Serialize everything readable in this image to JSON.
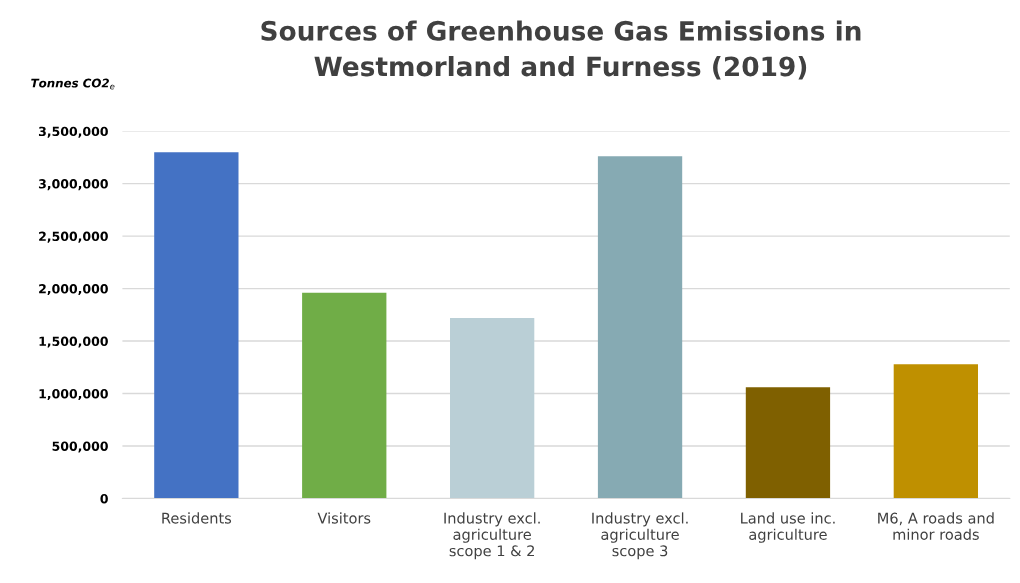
{
  "chart_data": {
    "type": "bar",
    "title": "Sources of Greenhouse Gas Emissions in\nWestmorland and Furness (2019)",
    "ylabel": "Tonnes CO2$_{e}$",
    "categories": [
      "Residents",
      "Visitors",
      "Industry excl.\nagriculture\nscope 1 & 2",
      "Industry excl.\nagriculture\nscope 3",
      "Land use inc.\nagriculture",
      "M6, A roads and\nminor roads"
    ],
    "values": [
      3300000,
      1960000,
      1720000,
      3260000,
      1060000,
      1280000
    ],
    "colors": [
      "#4472c4",
      "#70ad47",
      "#bacfd6",
      "#86aab3",
      "#7f6000",
      "#bf9000"
    ],
    "ylim": [
      0,
      3500000
    ],
    "yticks": [
      {
        "value": 0,
        "label": "0"
      },
      {
        "value": 500000,
        "label": "500,000"
      },
      {
        "value": 1000000,
        "label": "1,000,000"
      },
      {
        "value": 1500000,
        "label": "1,500,000"
      },
      {
        "value": 2000000,
        "label": "2,000,000"
      },
      {
        "value": 2500000,
        "label": "2,500,000"
      },
      {
        "value": 3000000,
        "label": "3,000,000"
      },
      {
        "value": 3500000,
        "label": "3,500,000"
      }
    ],
    "grid": "y",
    "legend": false
  }
}
